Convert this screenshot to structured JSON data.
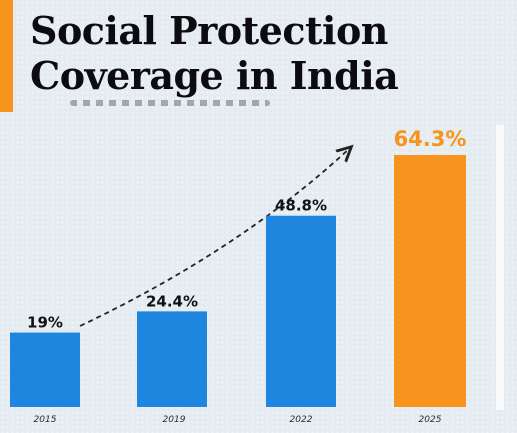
{
  "title_lines": [
    "Social Protection",
    "Coverage in India"
  ],
  "colors": {
    "accent": "#f7941d",
    "bar_blue": "#1f86e0",
    "bar_highlight": "#f7941d",
    "label_dark": "#111111",
    "label_highlight": "#f7941d",
    "background": "#e4ebf1"
  },
  "chart_data": {
    "type": "bar",
    "title": "Social Protection Coverage in India",
    "categories": [
      "2015",
      "2019",
      "2022",
      "2025"
    ],
    "values": [
      19,
      24.4,
      48.8,
      64.3
    ],
    "data_labels": [
      "19%",
      "24.4%",
      "48.8%",
      "64.3%"
    ],
    "highlight_index": 3,
    "unit": "%",
    "xlabel": "",
    "ylabel": "",
    "ylim": [
      0,
      64.3
    ],
    "grid": false,
    "legend": "none",
    "annotation": "dashed-arrow-trend-upward"
  }
}
